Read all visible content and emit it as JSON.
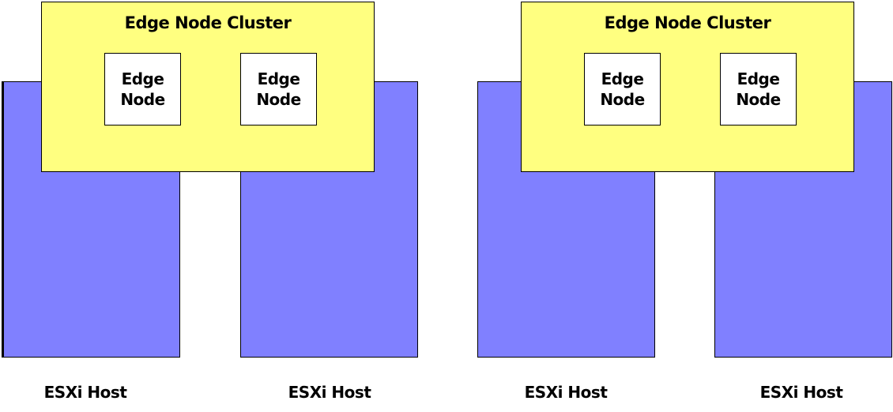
{
  "diagram": {
    "colors": {
      "host_fill": "#8080ff",
      "cluster_fill": "#ffff80",
      "node_fill": "#ffffff",
      "outline": "#000000"
    },
    "groups": [
      {
        "cluster": {
          "title": "Edge Node Cluster",
          "nodes": [
            {
              "label": "Edge Node"
            },
            {
              "label": "Edge Node"
            }
          ]
        },
        "hosts": [
          {
            "label": "ESXi Host"
          },
          {
            "label": "ESXi Host"
          }
        ]
      },
      {
        "cluster": {
          "title": "Edge Node Cluster",
          "nodes": [
            {
              "label": "Edge Node"
            },
            {
              "label": "Edge Node"
            }
          ]
        },
        "hosts": [
          {
            "label": "ESXi Host"
          },
          {
            "label": "ESXi Host"
          }
        ]
      }
    ]
  }
}
